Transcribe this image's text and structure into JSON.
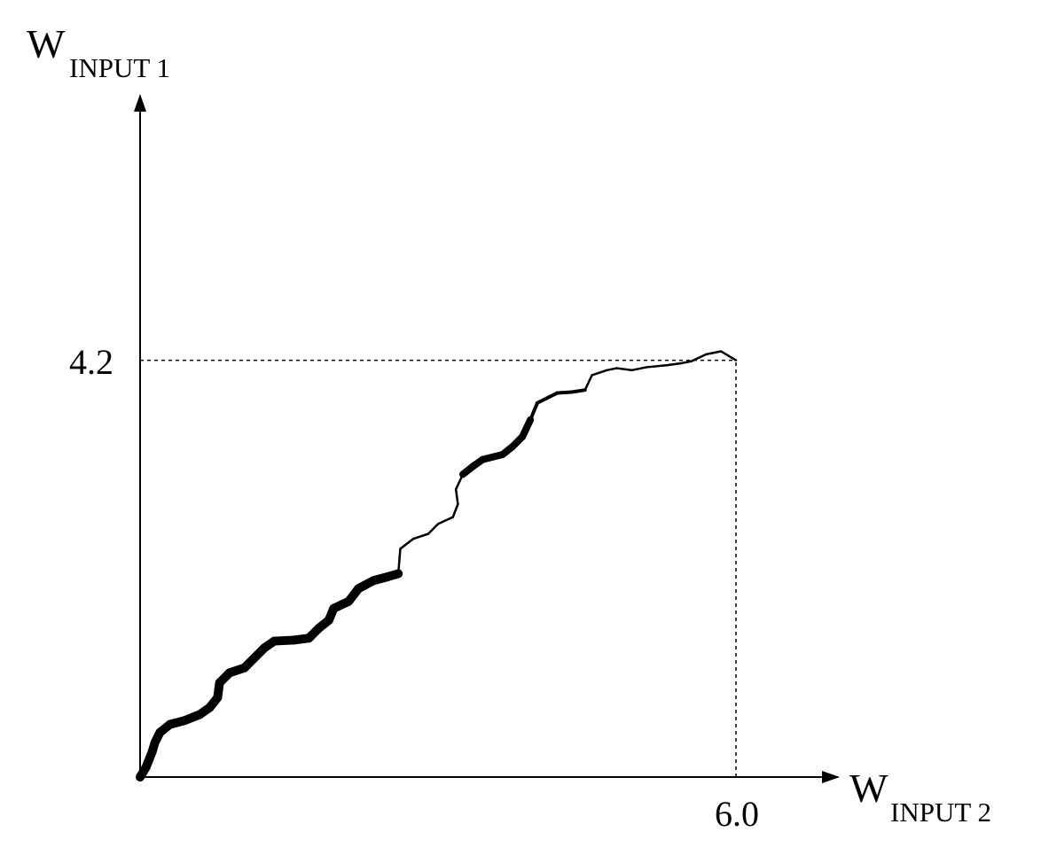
{
  "chart_data": {
    "type": "line",
    "title": "",
    "xlabel": "W",
    "xlabel_sub": "INPUT 2",
    "ylabel": "W",
    "ylabel_sub": "INPUT 1",
    "xlim": [
      0,
      7.15
    ],
    "ylim": [
      0,
      5.64
    ],
    "x_ticks": [
      6.0
    ],
    "x_tick_labels": [
      "6.0"
    ],
    "y_ticks": [
      4.2
    ],
    "y_tick_labels": [
      "4.2"
    ],
    "grid": false,
    "legend": "none",
    "reference_lines": [
      {
        "type": "vertical",
        "x": 6.0,
        "y_from": 0,
        "y_to": 4.2,
        "style": "dotted"
      },
      {
        "type": "horizontal",
        "y": 4.2,
        "x_from": 0,
        "x_to": 6.0,
        "style": "dotted"
      }
    ],
    "series": [
      {
        "points": [
          [
            0.0,
            0.0,
            10
          ],
          [
            0.06,
            0.1,
            10
          ],
          [
            0.12,
            0.25,
            10
          ],
          [
            0.15,
            0.35,
            10
          ],
          [
            0.2,
            0.45,
            10
          ],
          [
            0.3,
            0.53,
            10
          ],
          [
            0.45,
            0.57,
            10
          ],
          [
            0.6,
            0.63,
            10
          ],
          [
            0.7,
            0.7,
            10
          ],
          [
            0.78,
            0.8,
            10
          ],
          [
            0.8,
            0.95,
            10
          ],
          [
            0.9,
            1.05,
            10
          ],
          [
            1.05,
            1.1,
            10
          ],
          [
            1.15,
            1.2,
            10
          ],
          [
            1.25,
            1.3,
            10
          ],
          [
            1.35,
            1.37,
            10
          ],
          [
            1.55,
            1.38,
            10
          ],
          [
            1.7,
            1.4,
            10
          ],
          [
            1.8,
            1.5,
            10
          ],
          [
            1.9,
            1.58,
            10
          ],
          [
            1.95,
            1.7,
            10
          ],
          [
            2.1,
            1.77,
            10
          ],
          [
            2.2,
            1.9,
            10
          ],
          [
            2.35,
            1.98,
            10
          ],
          [
            2.5,
            2.02,
            10
          ],
          [
            2.6,
            2.05,
            10
          ],
          [
            2.62,
            2.3,
            2.5
          ],
          [
            2.75,
            2.4,
            2.5
          ],
          [
            2.9,
            2.45,
            2.5
          ],
          [
            3.0,
            2.55,
            2.5
          ],
          [
            3.15,
            2.62,
            2.5
          ],
          [
            3.2,
            2.75,
            2.5
          ],
          [
            3.18,
            2.9,
            2.5
          ],
          [
            3.25,
            3.05,
            2.5
          ],
          [
            3.35,
            3.13,
            8
          ],
          [
            3.45,
            3.2,
            8
          ],
          [
            3.65,
            3.25,
            8
          ],
          [
            3.75,
            3.33,
            8
          ],
          [
            3.85,
            3.43,
            8
          ],
          [
            3.93,
            3.6,
            8
          ],
          [
            4.0,
            3.77,
            4
          ],
          [
            4.2,
            3.87,
            4
          ],
          [
            4.35,
            3.88,
            4
          ],
          [
            4.48,
            3.9,
            4
          ],
          [
            4.55,
            4.05,
            2.5
          ],
          [
            4.7,
            4.1,
            2.5
          ],
          [
            4.8,
            4.12,
            2.5
          ],
          [
            4.95,
            4.1,
            2.5
          ],
          [
            5.1,
            4.13,
            2.5
          ],
          [
            5.3,
            4.15,
            2.5
          ],
          [
            5.45,
            4.17,
            2.5
          ],
          [
            5.55,
            4.19,
            2.5
          ],
          [
            5.7,
            4.26,
            2.5
          ],
          [
            5.85,
            4.29,
            2.5
          ],
          [
            6.0,
            4.2,
            2.5
          ]
        ]
      }
    ]
  }
}
